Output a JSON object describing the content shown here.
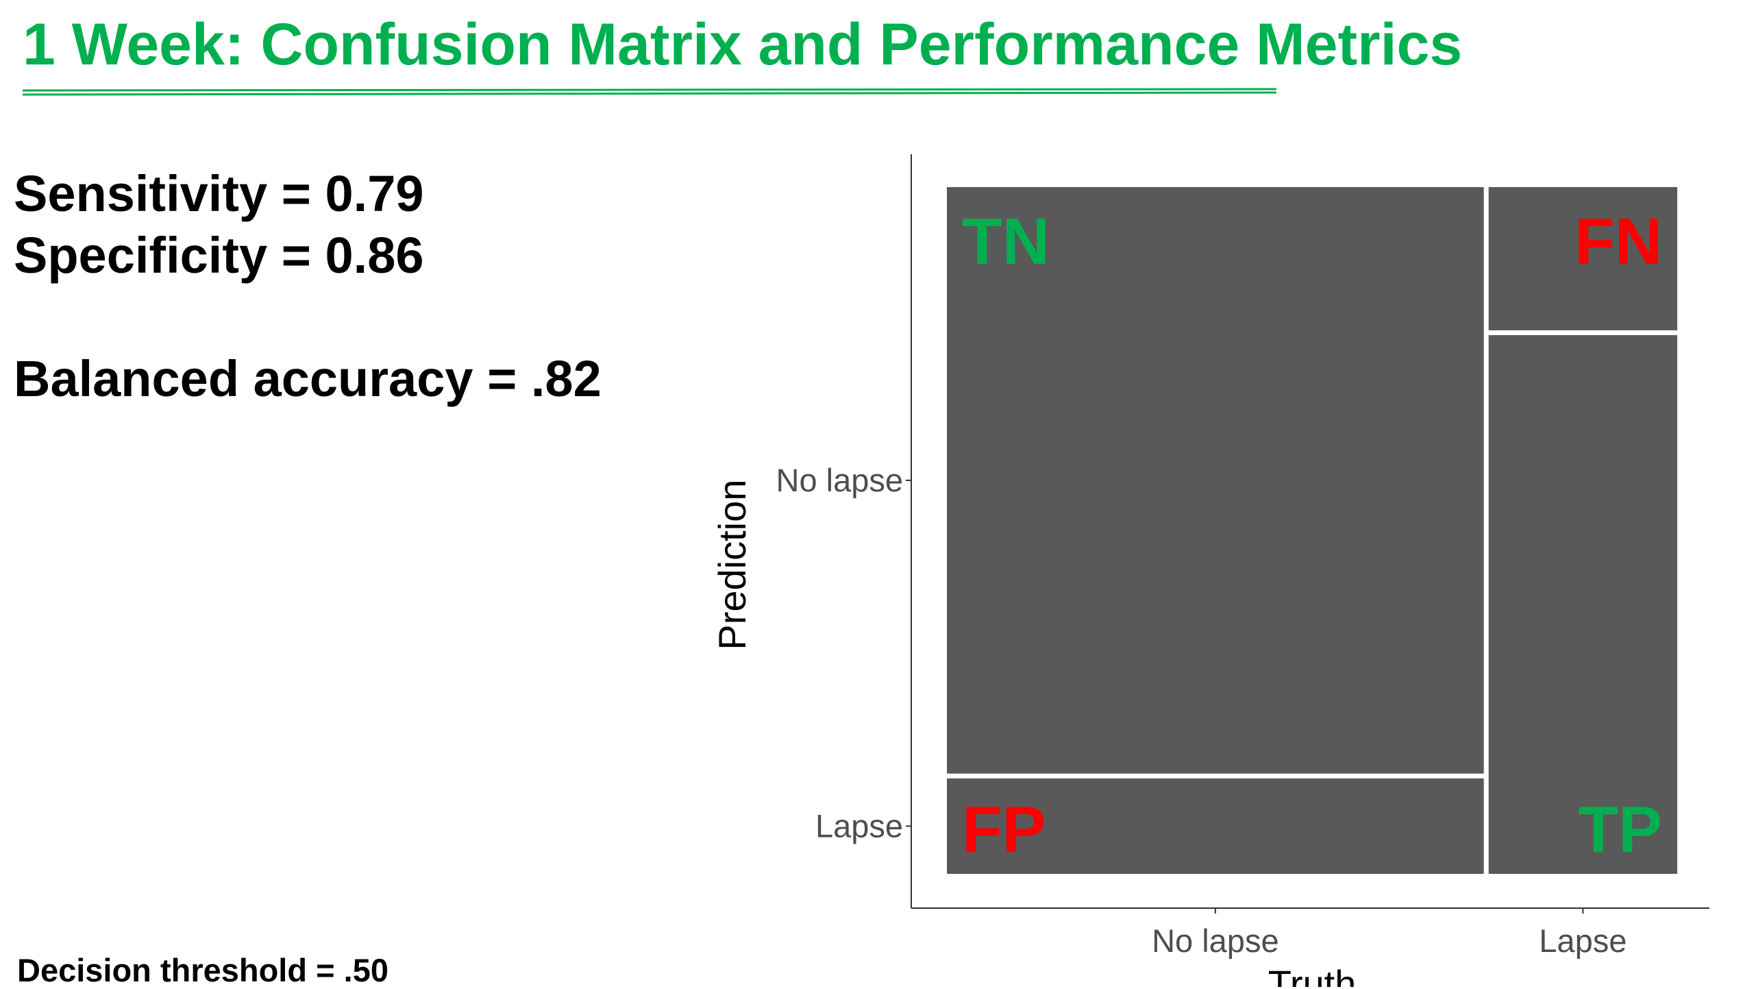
{
  "slide": {
    "title": "1 Week: Confusion Matrix and Performance Metrics",
    "accent_color": "#00b050"
  },
  "metrics": {
    "sensitivity": "Sensitivity = 0.79",
    "specificity": "Specificity = 0.86",
    "balanced_accuracy": "Balanced accuracy = .82"
  },
  "footnote": "Decision threshold = .50",
  "chart_data": {
    "type": "mosaic",
    "xlabel": "Truth",
    "ylabel": "Prediction",
    "x_categories": [
      "No lapse",
      "Lapse"
    ],
    "y_categories": [
      "No lapse",
      "Lapse"
    ],
    "x_proportions": [
      0.74,
      0.26
    ],
    "cells": [
      {
        "truth": "No lapse",
        "prediction": "No lapse",
        "label": "TN",
        "label_color": "#00b050",
        "proportion_within_truth": 0.86
      },
      {
        "truth": "No lapse",
        "prediction": "Lapse",
        "label": "FP",
        "label_color": "#ff0000",
        "proportion_within_truth": 0.14
      },
      {
        "truth": "Lapse",
        "prediction": "No lapse",
        "label": "FN",
        "label_color": "#ff0000",
        "proportion_within_truth": 0.21
      },
      {
        "truth": "Lapse",
        "prediction": "Lapse",
        "label": "TP",
        "label_color": "#00b050",
        "proportion_within_truth": 0.79
      }
    ],
    "fill_color": "#595959",
    "grid": false
  }
}
